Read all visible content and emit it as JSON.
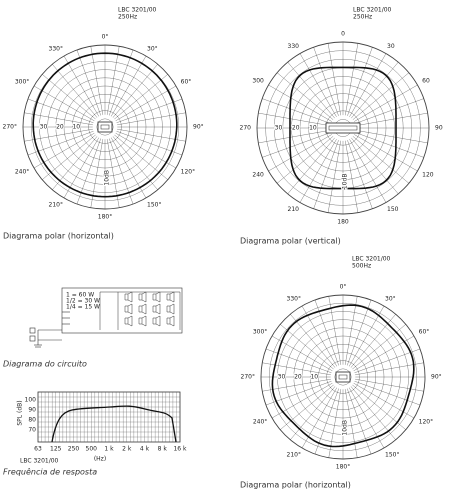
{
  "polar_h250": {
    "model": "LBC 3201/00",
    "frequency": "250Hz",
    "angles": [
      "0°",
      "30°",
      "60°",
      "90°",
      "120°",
      "150°",
      "180°",
      "210°",
      "240°",
      "270°",
      "300°",
      "330°"
    ],
    "scale": [
      "30",
      "20",
      "10"
    ],
    "scale_unit": "10dB",
    "caption": "Diagrama polar (horizontal)"
  },
  "polar_v250": {
    "model": "LBC 3201/00",
    "frequency": "250Hz",
    "angles": [
      "0",
      "30",
      "60",
      "90",
      "120",
      "150",
      "180",
      "210",
      "240",
      "270",
      "300",
      "330"
    ],
    "scale": [
      "30",
      "20",
      "10"
    ],
    "scale_unit": "10dB",
    "caption": "Diagrama polar (vertical)"
  },
  "polar_h500": {
    "model": "LBC 3201/00",
    "frequency": "500Hz",
    "angles": [
      "0°",
      "30°",
      "60°",
      "90°",
      "120°",
      "150°",
      "180°",
      "210°",
      "240°",
      "270°",
      "300°",
      "330°"
    ],
    "scale": [
      "30",
      "20",
      "10"
    ],
    "scale_unit": "10dB",
    "caption": "Diagrama polar (horizontal)"
  },
  "circuit": {
    "taps": [
      "1 = 60 W",
      "1/2 = 30 W",
      "1/4 = 15 W"
    ],
    "caption": "Diagrama do circuito"
  },
  "response": {
    "y_label": "SPL (dB)",
    "y_ticks": [
      "100",
      "90",
      "80",
      "70"
    ],
    "x_ticks": [
      "63",
      "125",
      "250",
      "500",
      "1 k",
      "2 k",
      "4 k",
      "8 k",
      "16 k"
    ],
    "x_unit": "(Hz)",
    "model": "LBC 3201/00",
    "caption": "Frequência de resposta"
  }
}
